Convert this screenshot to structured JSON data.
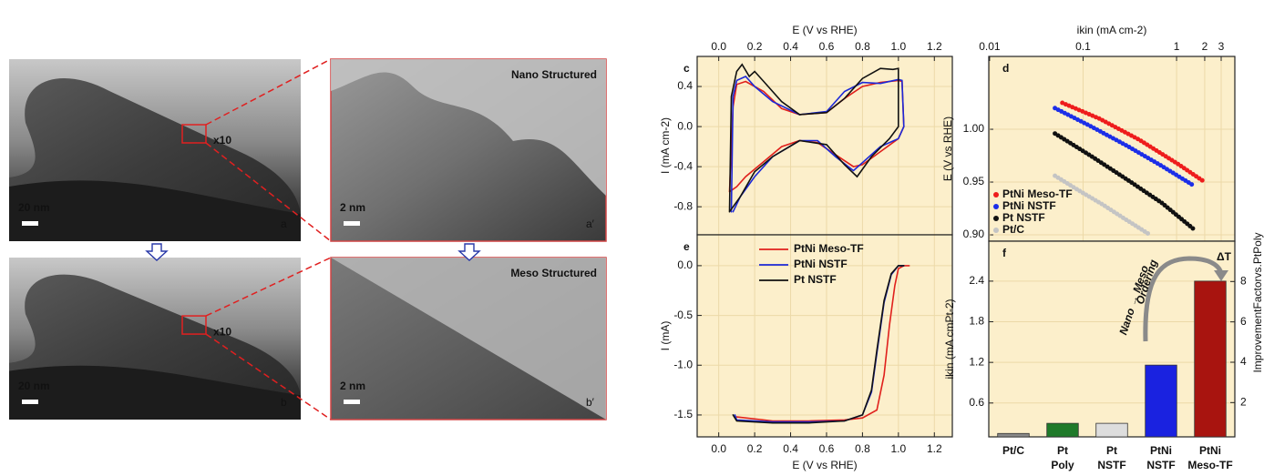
{
  "images": [
    {
      "label": "a",
      "scale_bar": "20 nm",
      "zoom": "x10"
    },
    {
      "label": "a′",
      "scale_bar": "2 nm",
      "title": "Nano Structured",
      "title_color": "#d9706e"
    },
    {
      "label": "b",
      "scale_bar": "20 nm",
      "zoom": "x10"
    },
    {
      "label": "b′",
      "scale_bar": "2 nm",
      "title": "Meso Structured",
      "title_color": "#c0181c"
    }
  ],
  "chart_data": [
    {
      "type": "line",
      "panel_label": "c",
      "xlabel": "E (V vs RHE)",
      "ylabel": "I (mA cm-2)",
      "xaxis": "top",
      "xlim": [
        -0.12,
        1.3
      ],
      "ylim": [
        -1.08,
        0.7
      ],
      "grid": true,
      "xticks": [
        {
          "value": 0,
          "label": "0.0"
        },
        0.2,
        0.4,
        0.6,
        0.8,
        {
          "value": 1,
          "label": "1.0"
        },
        1.2
      ],
      "yticks": [
        -0.8,
        -0.4,
        {
          "value": 0,
          "label": "0.0"
        },
        0.4
      ],
      "series": [
        {
          "name": "PtNi Meso-TF",
          "color": "#e0201c",
          "x": [
            0.06,
            0.08,
            0.1,
            0.15,
            0.25,
            0.35,
            0.45,
            0.6,
            0.7,
            0.8,
            0.9,
            1.0,
            1.02,
            1.03,
            1.0,
            0.9,
            0.8,
            0.75,
            0.65,
            0.55,
            0.45,
            0.35,
            0.25,
            0.15,
            0.1,
            0.06
          ],
          "values": [
            -0.65,
            0.2,
            0.42,
            0.45,
            0.35,
            0.18,
            0.12,
            0.14,
            0.28,
            0.4,
            0.44,
            0.46,
            0.45,
            0.0,
            -0.12,
            -0.25,
            -0.38,
            -0.4,
            -0.28,
            -0.16,
            -0.14,
            -0.2,
            -0.35,
            -0.5,
            -0.6,
            -0.65
          ]
        },
        {
          "name": "PtNi NSTF",
          "color": "#1c28d8",
          "x": [
            0.07,
            0.08,
            0.1,
            0.15,
            0.2,
            0.3,
            0.45,
            0.6,
            0.7,
            0.8,
            0.9,
            1.0,
            1.02,
            1.03,
            1.0,
            0.9,
            0.8,
            0.75,
            0.65,
            0.55,
            0.45,
            0.3,
            0.2,
            0.12,
            0.08
          ],
          "values": [
            -0.85,
            0.3,
            0.46,
            0.5,
            0.4,
            0.25,
            0.12,
            0.15,
            0.35,
            0.44,
            0.43,
            0.47,
            0.46,
            0.0,
            -0.12,
            -0.2,
            -0.36,
            -0.44,
            -0.3,
            -0.14,
            -0.14,
            -0.3,
            -0.5,
            -0.7,
            -0.85
          ]
        },
        {
          "name": "Pt NSTF",
          "color": "#111111",
          "x": [
            0.06,
            0.07,
            0.1,
            0.13,
            0.17,
            0.2,
            0.25,
            0.35,
            0.45,
            0.6,
            0.7,
            0.8,
            0.9,
            0.97,
            1.0,
            1.0,
            0.95,
            0.85,
            0.77,
            0.7,
            0.6,
            0.45,
            0.3,
            0.2,
            0.12,
            0.06
          ],
          "values": [
            -0.85,
            0.3,
            0.55,
            0.62,
            0.5,
            0.55,
            0.45,
            0.25,
            0.12,
            0.14,
            0.28,
            0.48,
            0.58,
            0.57,
            0.58,
            0.0,
            -0.12,
            -0.3,
            -0.5,
            -0.38,
            -0.18,
            -0.14,
            -0.3,
            -0.45,
            -0.7,
            -0.85
          ]
        }
      ]
    },
    {
      "type": "line",
      "panel_label": "e",
      "xlabel": "E (V vs RHE)",
      "ylabel": "I (mA)",
      "xaxis": "bottom",
      "xlim": [
        -0.12,
        1.3
      ],
      "ylim": [
        -1.72,
        0.31
      ],
      "grid": true,
      "legend": "upper left",
      "xticks": [
        {
          "value": 0,
          "label": "0.0"
        },
        0.2,
        0.4,
        0.6,
        0.8,
        {
          "value": 1,
          "label": "1.0"
        },
        1.2
      ],
      "yticks": [
        -1.5,
        {
          "value": -1,
          "label": "-1.0"
        },
        -0.5,
        {
          "value": 0,
          "label": "0.0"
        }
      ],
      "series": [
        {
          "name": "PtNi Meso-TF",
          "color": "#e0201c",
          "x": [
            0.1,
            0.3,
            0.5,
            0.7,
            0.8,
            0.88,
            0.92,
            0.95,
            0.98,
            1.0,
            1.03,
            1.06
          ],
          "values": [
            -1.52,
            -1.56,
            -1.56,
            -1.55,
            -1.53,
            -1.45,
            -1.1,
            -0.6,
            -0.2,
            -0.03,
            0.0,
            0.0
          ]
        },
        {
          "name": "PtNi NSTF",
          "color": "#1c28d8",
          "x": [
            0.09,
            0.1,
            0.3,
            0.5,
            0.7,
            0.8,
            0.85,
            0.88,
            0.92,
            0.96,
            1.0,
            1.03
          ],
          "values": [
            -1.5,
            -1.55,
            -1.57,
            -1.57,
            -1.56,
            -1.5,
            -1.27,
            -0.88,
            -0.37,
            -0.09,
            0.0,
            0.0
          ]
        },
        {
          "name": "Pt NSTF",
          "color": "#111111",
          "x": [
            0.08,
            0.1,
            0.3,
            0.5,
            0.7,
            0.8,
            0.85,
            0.88,
            0.92,
            0.96,
            1.0,
            1.03
          ],
          "values": [
            -1.5,
            -1.56,
            -1.58,
            -1.58,
            -1.56,
            -1.5,
            -1.25,
            -0.85,
            -0.35,
            -0.08,
            0.0,
            0.0
          ]
        }
      ]
    },
    {
      "type": "line",
      "panel_label": "d",
      "xlabel": "ikin (mA cm-2)",
      "ylabel": "E (V vs RHE)",
      "xaxis": "top",
      "xscale": "log",
      "line_style": "dotted",
      "legend": "lower left",
      "grid": true,
      "xlim": [
        0.0098,
        4.2
      ],
      "ylim": [
        0.894,
        1.069
      ],
      "xticks": [
        0.01,
        0.1,
        1,
        2,
        3
      ],
      "yticks": [
        {
          "value": 0.9,
          "label": "0.90"
        },
        0.95,
        {
          "value": 1,
          "label": "1.00"
        }
      ],
      "series": [
        {
          "name": "PtNi Meso-TF",
          "color": "#ee1c1c",
          "x": [
            0.06,
            0.15,
            0.4,
            1.0,
            2.0
          ],
          "values": [
            1.025,
            1.01,
            0.99,
            0.968,
            0.95
          ]
        },
        {
          "name": "PtNi NSTF",
          "color": "#1c2ee8",
          "x": [
            0.05,
            0.12,
            0.3,
            0.7,
            1.5
          ],
          "values": [
            1.02,
            1.003,
            0.984,
            0.965,
            0.947
          ]
        },
        {
          "name": "Pt NSTF",
          "color": "#111111",
          "x": [
            0.05,
            0.12,
            0.3,
            0.7,
            1.5
          ],
          "values": [
            0.996,
            0.975,
            0.952,
            0.93,
            0.906
          ]
        },
        {
          "name": "Pt/C",
          "color": "#c4c4c4",
          "x": [
            0.05,
            0.09,
            0.16,
            0.28,
            0.5
          ],
          "values": [
            0.956,
            0.942,
            0.929,
            0.915,
            0.901
          ]
        }
      ]
    },
    {
      "type": "bar",
      "panel_label": "f",
      "ylabel": "ikin (mA cmPt-2)",
      "y2label": "ImprovementFactorvs.PtPoly",
      "categories": [
        "Pt/C",
        "Pt Poly",
        "Pt NSTF",
        "PtNi NSTF",
        "PtNi Meso-TF"
      ],
      "values": [
        0.15,
        0.3,
        0.3,
        1.16,
        2.4
      ],
      "colors": [
        "#8a8a8a",
        "#1f7a2a",
        "#dddddd",
        "#1a22e0",
        "#a8140f"
      ],
      "ylim": [
        0.1,
        2.99
      ],
      "yticks": [
        0.6,
        1.2,
        1.8,
        2.4
      ],
      "y2lim": [
        0.3,
        10
      ],
      "y2ticks": [
        2,
        4,
        6,
        8
      ],
      "grid": true,
      "annotations": [
        "ΔT",
        "Nano → Meso",
        "Ordering"
      ]
    }
  ]
}
